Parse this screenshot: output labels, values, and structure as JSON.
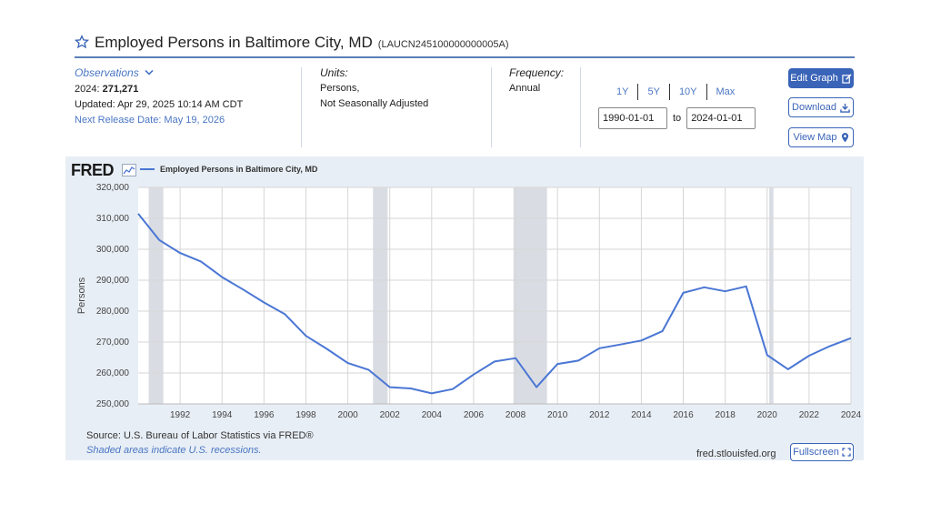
{
  "header": {
    "title": "Employed Persons in Baltimore City, MD",
    "series_id": "(LAUCN245100000000005A)"
  },
  "observations": {
    "label": "Observations",
    "period": "2024:",
    "value": "271,271",
    "updated": "Updated: Apr 29, 2025 10:14 AM CDT",
    "next_release": "Next Release Date: May 19, 2026"
  },
  "units": {
    "label": "Units:",
    "line1": "Persons,",
    "line2": "Not Seasonally Adjusted"
  },
  "frequency": {
    "label": "Frequency:",
    "value": "Annual"
  },
  "ranges": [
    "1Y",
    "5Y",
    "10Y",
    "Max"
  ],
  "dates": {
    "start": "1990-01-01",
    "to": "to",
    "end": "2024-01-01"
  },
  "buttons": {
    "edit": "Edit Graph",
    "download": "Download",
    "map": "View Map",
    "fullscreen": "Fullscreen"
  },
  "chart_panel": {
    "logo": "FRED",
    "legend": "Employed Persons in Baltimore City, MD",
    "source": "Source: U.S. Bureau of Labor Statistics via FRED®",
    "recession_note": "Shaded areas indicate U.S. recessions.",
    "site": "fred.stlouisfed.org"
  },
  "colors": {
    "line": "#4a76d4",
    "accent": "#3a64b8",
    "panel": "#e8eef5",
    "recession": "#d9dde3"
  },
  "chart_data": {
    "type": "line",
    "ylabel": "Persons",
    "xlim": [
      1990,
      2024
    ],
    "ylim": [
      250000,
      320000
    ],
    "y_ticks": [
      250000,
      260000,
      270000,
      280000,
      290000,
      300000,
      310000,
      320000
    ],
    "y_tick_labels": [
      "250,000",
      "260,000",
      "270,000",
      "280,000",
      "290,000",
      "300,000",
      "310,000",
      "320,000"
    ],
    "x_ticks": [
      1992,
      1994,
      1996,
      1998,
      2000,
      2002,
      2004,
      2006,
      2008,
      2010,
      2012,
      2014,
      2016,
      2018,
      2020,
      2022,
      2024
    ],
    "grid": true,
    "legend_position": "top-left",
    "recessions": [
      [
        1990.5,
        1991.2
      ],
      [
        2001.2,
        2001.9
      ],
      [
        2007.9,
        2009.5
      ],
      [
        2020.1,
        2020.3
      ]
    ],
    "series": [
      {
        "name": "Employed Persons in Baltimore City, MD",
        "x": [
          1990,
          1991,
          1992,
          1993,
          1994,
          1995,
          1996,
          1997,
          1998,
          1999,
          2000,
          2001,
          2002,
          2003,
          2004,
          2005,
          2006,
          2007,
          2008,
          2009,
          2010,
          2011,
          2012,
          2013,
          2014,
          2015,
          2016,
          2017,
          2018,
          2019,
          2020,
          2021,
          2022,
          2023,
          2024
        ],
        "values": [
          311500,
          303000,
          298800,
          296000,
          291000,
          287000,
          282800,
          279000,
          272000,
          267800,
          263200,
          261000,
          255400,
          255000,
          253400,
          254800,
          259500,
          263700,
          264800,
          255400,
          262900,
          264000,
          268000,
          269200,
          270500,
          273500,
          285900,
          287700,
          286400,
          288000,
          265800,
          261200,
          265600,
          268700,
          271271
        ]
      }
    ]
  }
}
